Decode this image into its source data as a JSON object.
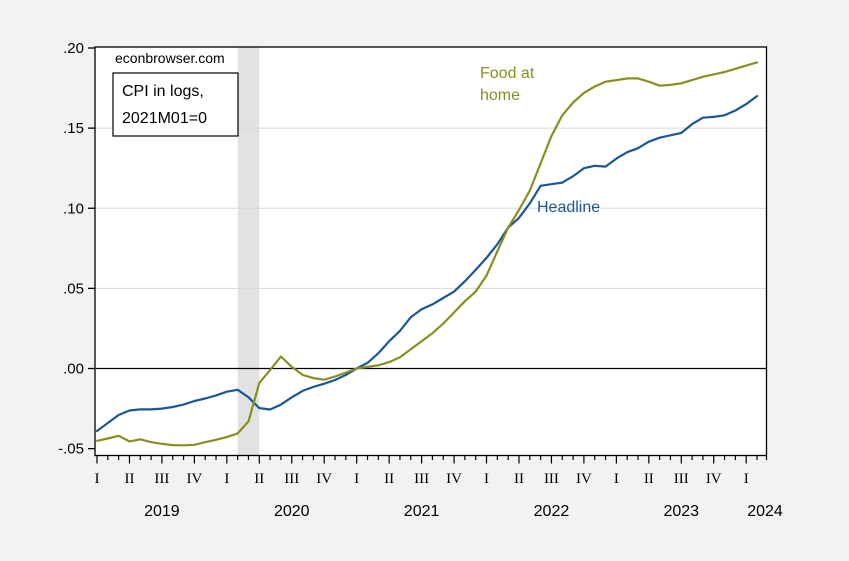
{
  "figure": {
    "source_label": "econbrowser.com",
    "note": {
      "line1": "CPI in logs,",
      "line2": "2021M01=0"
    },
    "colors": {
      "headline": "#1a5794",
      "food_at_home": "#8a8e1e",
      "recession_band": "#e2e2e2",
      "grid": "#d8d8d8",
      "zero_line": "#000000",
      "plot_background": "#ffffff",
      "page_background": "#f2f2f2",
      "axis": "#000000"
    }
  },
  "chart_data": {
    "type": "line",
    "title": "",
    "xlabel": "",
    "ylabel": "",
    "frequency": "monthly",
    "x_start": "2019M01",
    "x_end": "2024M02",
    "ylim": [
      -0.055,
      0.201
    ],
    "ytick_labels": [
      ".20",
      ".15",
      ".10",
      ".05",
      ".00",
      "-.05"
    ],
    "ytick_values": [
      0.2,
      0.15,
      0.1,
      0.05,
      0.0,
      -0.05
    ],
    "gridline_values": [
      0.15,
      0.1,
      0.05
    ],
    "zero_line": true,
    "grid": "horizontal-only",
    "legend_position": "inline-annotations",
    "recession_band": {
      "from_month_index": 13,
      "to_month_index": 15,
      "note": "Feb 2020 - Apr 2020 shading"
    },
    "quarter_tick_labels": [
      "I",
      "II",
      "III",
      "IV",
      "I",
      "II",
      "III",
      "IV",
      "I",
      "II",
      "III",
      "IV",
      "I",
      "II",
      "III",
      "IV",
      "I",
      "II",
      "III",
      "IV",
      "I"
    ],
    "year_labels": [
      "2019",
      "2020",
      "2021",
      "2022",
      "2023",
      "2024"
    ],
    "series": [
      {
        "name": "Headline",
        "label_lines": [
          "Headline"
        ],
        "color": "#1a5794",
        "values": [
          -0.039,
          -0.034,
          -0.029,
          -0.0262,
          -0.0255,
          -0.0255,
          -0.025,
          -0.024,
          -0.0225,
          -0.0203,
          -0.0187,
          -0.0168,
          -0.0145,
          -0.0133,
          -0.018,
          -0.0247,
          -0.0256,
          -0.0225,
          -0.018,
          -0.014,
          -0.0115,
          -0.0095,
          -0.0072,
          -0.004,
          0.0,
          0.0035,
          0.0095,
          0.017,
          0.0235,
          0.032,
          0.037,
          0.04,
          0.044,
          0.048,
          0.0545,
          0.0615,
          0.069,
          0.0775,
          0.088,
          0.094,
          0.103,
          0.114,
          0.115,
          0.116,
          0.12,
          0.125,
          0.1265,
          0.126,
          0.131,
          0.135,
          0.1375,
          0.1415,
          0.144,
          0.1455,
          0.147,
          0.1525,
          0.1565,
          0.157,
          0.158,
          0.161,
          0.165,
          0.17
        ]
      },
      {
        "name": "Food at home",
        "label_lines": [
          "Food at",
          "home"
        ],
        "color": "#8a8e1e",
        "values": [
          -0.0451,
          -0.0437,
          -0.042,
          -0.0455,
          -0.0442,
          -0.046,
          -0.047,
          -0.0478,
          -0.0479,
          -0.0476,
          -0.046,
          -0.0445,
          -0.0428,
          -0.0405,
          -0.033,
          -0.009,
          -0.001,
          0.0075,
          0.001,
          -0.004,
          -0.006,
          -0.007,
          -0.005,
          -0.0025,
          0.0,
          0.001,
          0.002,
          0.004,
          0.007,
          0.012,
          0.017,
          0.022,
          0.028,
          0.035,
          0.042,
          0.048,
          0.058,
          0.073,
          0.088,
          0.099,
          0.111,
          0.128,
          0.145,
          0.158,
          0.166,
          0.172,
          0.176,
          0.179,
          0.18,
          0.181,
          0.181,
          0.179,
          0.1765,
          0.177,
          0.178,
          0.18,
          0.182,
          0.1835,
          0.185,
          0.187,
          0.189,
          0.191
        ]
      }
    ]
  }
}
